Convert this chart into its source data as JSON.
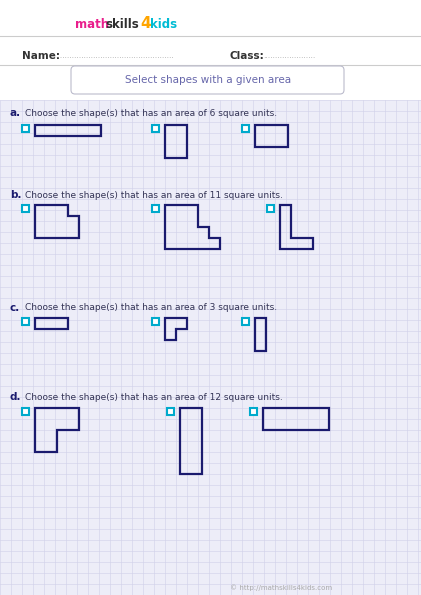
{
  "title": "Select shapes with a given area",
  "bg_color": "#f0f0f8",
  "grid_color": "#d0d0e8",
  "shape_color": "#1a1a6e",
  "checkbox_color": "#00aacc",
  "title_color": "#6666aa",
  "label_color": "#1a1a6e",
  "text_color": "#333355",
  "questions": [
    {
      "letter": "a.",
      "text": "Choose the shape(s) that has an area of 6 square units."
    },
    {
      "letter": "b.",
      "text": "Choose the shape(s) that has an area of 11 square units."
    },
    {
      "letter": "c.",
      "text": "Choose the shape(s) that has an area of 3 square units."
    },
    {
      "letter": "d.",
      "text": "Choose the shape(s) that has an area of 12 square units."
    }
  ],
  "copyright": "© http://mathskills4kids.com"
}
